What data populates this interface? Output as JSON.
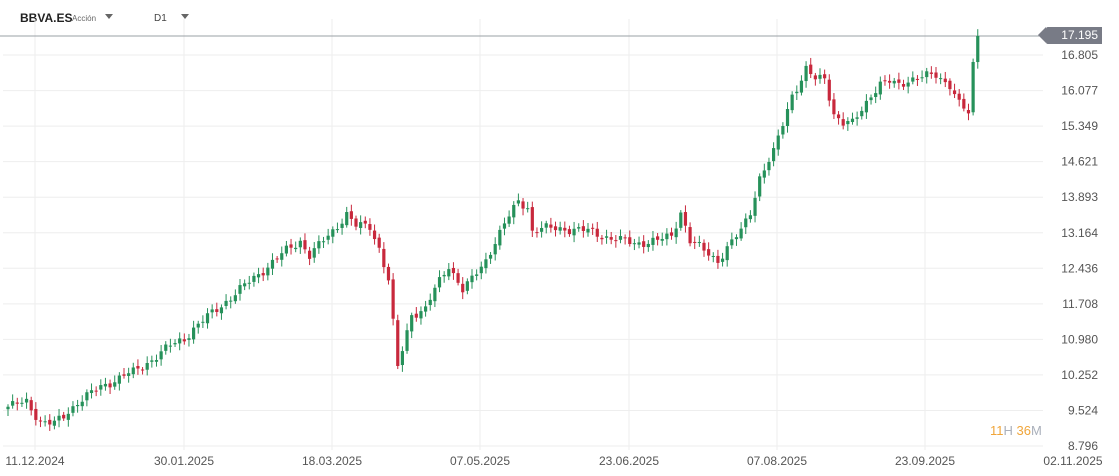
{
  "header": {
    "symbol": "BBVA.ES",
    "asset_type": "Acción",
    "timeframe": "D1"
  },
  "last_price_label": "17.195",
  "countdown": {
    "hours": "11",
    "hours_unit": "H",
    "minutes": "36",
    "minutes_unit": "M"
  },
  "colors": {
    "up": "#26915a",
    "down": "#c8283c",
    "grid": "#eeeeee",
    "price_line": "#9aa0a6",
    "axis_text": "#555555"
  },
  "chart_data": {
    "type": "candlestick",
    "y_ticks": [
      "16.805",
      "16.077",
      "15.349",
      "14.621",
      "13.893",
      "13.164",
      "12.436",
      "11.708",
      "10.980",
      "10.252",
      "9.524",
      "8.796"
    ],
    "x_ticks": [
      "11.12.2024",
      "30.01.2025",
      "18.03.2025",
      "07.05.2025",
      "23.06.2025",
      "07.08.2025",
      "23.09.2025",
      "02.11.2025"
    ],
    "ylim": [
      8.796,
      17.195
    ],
    "last_price": 17.195,
    "close_path": [
      [
        0,
        9.6
      ],
      [
        4,
        9.7
      ],
      [
        7,
        9.3
      ],
      [
        10,
        9.25
      ],
      [
        12,
        9.4
      ],
      [
        15,
        9.7
      ],
      [
        20,
        10.0
      ],
      [
        25,
        10.25
      ],
      [
        27,
        10.3
      ],
      [
        30,
        10.5
      ],
      [
        35,
        10.85
      ],
      [
        38,
        11.0
      ],
      [
        40,
        11.2
      ],
      [
        45,
        11.6
      ],
      [
        50,
        12.0
      ],
      [
        55,
        12.4
      ],
      [
        60,
        12.8
      ],
      [
        63,
        13.0
      ],
      [
        65,
        12.7
      ],
      [
        70,
        13.2
      ],
      [
        73,
        13.55
      ],
      [
        75,
        13.3
      ],
      [
        78,
        13.3
      ],
      [
        80,
        12.85
      ],
      [
        82,
        12.2
      ],
      [
        84,
        10.4
      ],
      [
        87,
        11.5
      ],
      [
        90,
        11.6
      ],
      [
        92,
        12.0
      ],
      [
        95,
        12.5
      ],
      [
        98,
        12.0
      ],
      [
        100,
        12.2
      ],
      [
        103,
        12.6
      ],
      [
        105,
        13.0
      ],
      [
        108,
        13.5
      ],
      [
        110,
        13.8
      ],
      [
        112,
        13.7
      ],
      [
        113,
        13.2
      ],
      [
        115,
        13.25
      ],
      [
        120,
        13.25
      ],
      [
        125,
        13.2
      ],
      [
        130,
        13.05
      ],
      [
        135,
        12.95
      ],
      [
        140,
        13.0
      ],
      [
        143,
        13.1
      ],
      [
        145,
        13.6
      ],
      [
        147,
        13.0
      ],
      [
        150,
        12.8
      ],
      [
        153,
        12.6
      ],
      [
        155,
        12.85
      ],
      [
        158,
        13.2
      ],
      [
        160,
        13.6
      ],
      [
        162,
        14.3
      ],
      [
        165,
        14.8
      ],
      [
        167,
        15.4
      ],
      [
        169,
        16.0
      ],
      [
        171,
        16.3
      ],
      [
        172,
        16.5
      ],
      [
        174,
        16.3
      ],
      [
        176,
        16.35
      ],
      [
        178,
        15.6
      ],
      [
        180,
        15.4
      ],
      [
        182,
        15.4
      ],
      [
        184,
        15.7
      ],
      [
        186,
        16.0
      ],
      [
        188,
        16.2
      ],
      [
        190,
        16.25
      ],
      [
        192,
        16.2
      ],
      [
        194,
        16.3
      ],
      [
        197,
        16.35
      ],
      [
        200,
        16.4
      ],
      [
        203,
        16.2
      ],
      [
        205,
        15.8
      ],
      [
        207,
        15.6
      ],
      [
        208,
        16.6
      ],
      [
        209,
        17.195
      ]
    ]
  }
}
